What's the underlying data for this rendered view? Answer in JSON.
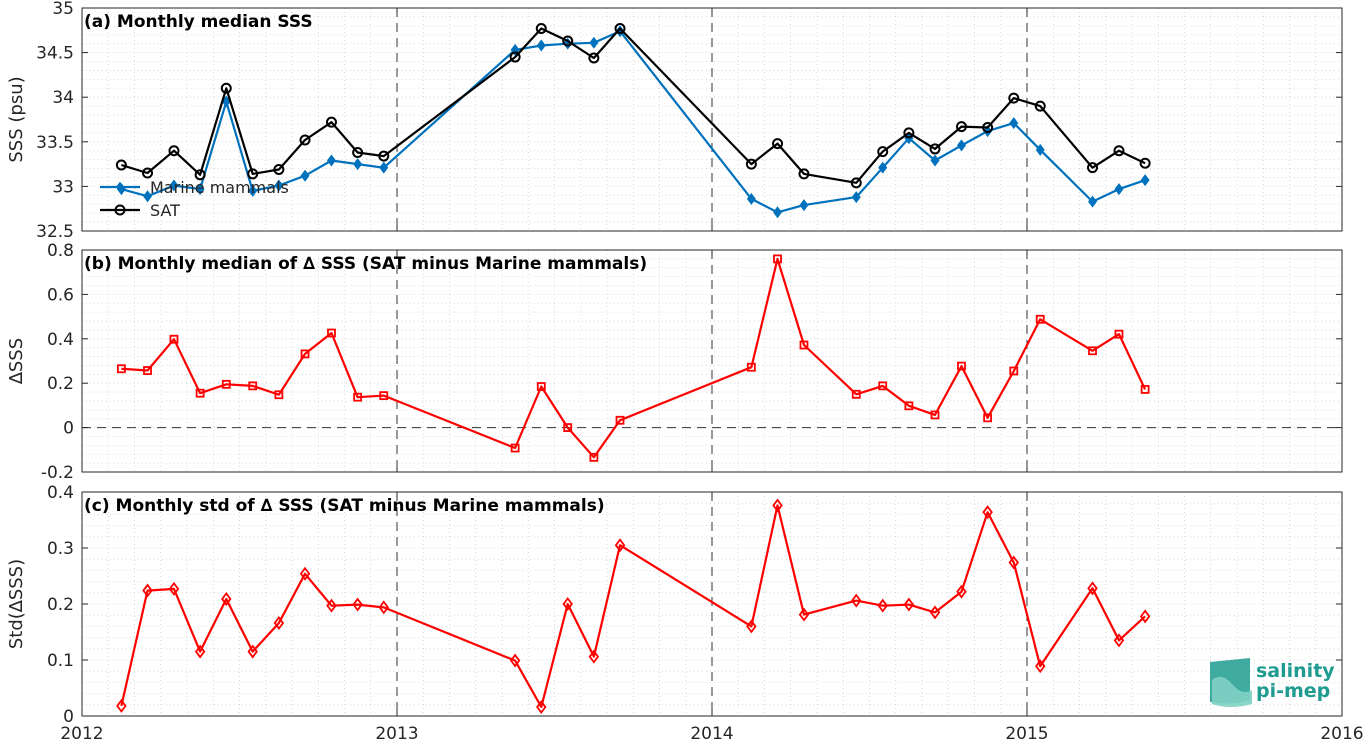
{
  "chart_data": [
    {
      "type": "line",
      "title": "(a) Monthly median SSS",
      "ylabel": "SSS (psu)",
      "xlim": [
        2012,
        2016
      ],
      "ylim": [
        32.5,
        35
      ],
      "yticks": [
        32.5,
        33,
        33.5,
        34,
        34.5,
        35
      ],
      "ytick_labels": [
        "32.5",
        "33",
        "33.5",
        "34",
        "34.5",
        "35"
      ],
      "grid": true,
      "legend": "lower-left",
      "dashed_x_lines": [
        2013,
        2014,
        2015
      ],
      "series": [
        {
          "name": "Marine mammals",
          "color": "#0072BD",
          "marker": "diamond",
          "x": [
            2012.125,
            2012.208,
            2012.292,
            2012.375,
            2012.458,
            2012.542,
            2012.625,
            2012.708,
            2012.792,
            2012.875,
            2012.958,
            2013.375,
            2013.458,
            2013.542,
            2013.625,
            2013.708,
            2014.125,
            2014.208,
            2014.292,
            2014.458,
            2014.542,
            2014.625,
            2014.708,
            2014.792,
            2014.875,
            2014.958,
            2015.042,
            2015.208,
            2015.292,
            2015.375
          ],
          "y": [
            32.97,
            32.89,
            33.01,
            32.97,
            33.95,
            32.95,
            33.01,
            33.12,
            33.29,
            33.25,
            33.21,
            34.53,
            34.58,
            34.6,
            34.61,
            34.74,
            32.86,
            32.71,
            32.79,
            32.88,
            33.21,
            33.54,
            33.29,
            33.46,
            33.62,
            33.71,
            33.41,
            32.83,
            32.97,
            33.07
          ]
        },
        {
          "name": "SAT",
          "color": "#000000",
          "marker": "circle",
          "x": [
            2012.125,
            2012.208,
            2012.292,
            2012.375,
            2012.458,
            2012.542,
            2012.625,
            2012.708,
            2012.792,
            2012.875,
            2012.958,
            2013.375,
            2013.458,
            2013.542,
            2013.625,
            2013.708,
            2014.125,
            2014.208,
            2014.292,
            2014.458,
            2014.542,
            2014.625,
            2014.708,
            2014.792,
            2014.875,
            2014.958,
            2015.042,
            2015.208,
            2015.292,
            2015.375
          ],
          "y": [
            33.24,
            33.15,
            33.4,
            33.13,
            34.1,
            33.14,
            33.19,
            33.52,
            33.72,
            33.38,
            33.34,
            34.45,
            34.77,
            34.63,
            34.44,
            34.77,
            33.25,
            33.48,
            33.14,
            33.04,
            33.39,
            33.6,
            33.42,
            33.67,
            33.66,
            33.99,
            33.9,
            33.21,
            33.4,
            33.26
          ]
        }
      ]
    },
    {
      "type": "line",
      "title": "(b) Monthly median of ∆ SSS (SAT minus Marine mammals)",
      "ylabel": "∆SSS",
      "xlim": [
        2012,
        2016
      ],
      "ylim": [
        -0.2,
        0.8
      ],
      "yticks": [
        -0.2,
        0,
        0.2,
        0.4,
        0.6,
        0.8
      ],
      "ytick_labels": [
        "-0.2",
        "0",
        "0.2",
        "0.4",
        "0.6",
        "0.8"
      ],
      "grid": true,
      "dashed_x_lines": [
        2013,
        2014,
        2015
      ],
      "dashed_y_line": 0,
      "series": [
        {
          "color": "#FF0000",
          "marker": "square",
          "x": [
            2012.125,
            2012.208,
            2012.292,
            2012.375,
            2012.458,
            2012.542,
            2012.625,
            2012.708,
            2012.792,
            2012.875,
            2012.958,
            2013.375,
            2013.458,
            2013.542,
            2013.625,
            2013.708,
            2014.125,
            2014.208,
            2014.292,
            2014.458,
            2014.542,
            2014.625,
            2014.708,
            2014.792,
            2014.875,
            2014.958,
            2015.042,
            2015.208,
            2015.292,
            2015.375
          ],
          "y": [
            0.265,
            0.257,
            0.398,
            0.155,
            0.195,
            0.188,
            0.148,
            0.332,
            0.426,
            0.137,
            0.144,
            -0.092,
            0.185,
            0.0,
            -0.134,
            0.033,
            0.272,
            0.76,
            0.372,
            0.15,
            0.188,
            0.098,
            0.057,
            0.277,
            0.044,
            0.255,
            0.488,
            0.346,
            0.421,
            0.172
          ]
        }
      ]
    },
    {
      "type": "line",
      "title": "(c) Monthly std of ∆ SSS (SAT minus Marine mammals)",
      "ylabel": "Std(∆SSS)",
      "xlim": [
        2012,
        2016
      ],
      "ylim": [
        0,
        0.4
      ],
      "yticks": [
        0,
        0.1,
        0.2,
        0.3,
        0.4
      ],
      "ytick_labels": [
        "0",
        "0.1",
        "0.2",
        "0.3",
        "0.4"
      ],
      "xticks": [
        2012,
        2013,
        2014,
        2015,
        2016
      ],
      "xtick_labels": [
        "2012",
        "2013",
        "2014",
        "2015",
        "2016"
      ],
      "grid": true,
      "dashed_x_lines": [
        2013,
        2014,
        2015
      ],
      "series": [
        {
          "color": "#FF0000",
          "marker": "diamond",
          "x": [
            2012.125,
            2012.208,
            2012.292,
            2012.375,
            2012.458,
            2012.542,
            2012.625,
            2012.708,
            2012.792,
            2012.875,
            2012.958,
            2013.375,
            2013.458,
            2013.542,
            2013.625,
            2013.708,
            2014.125,
            2014.208,
            2014.292,
            2014.458,
            2014.542,
            2014.625,
            2014.708,
            2014.792,
            2014.875,
            2014.958,
            2015.042,
            2015.208,
            2015.292,
            2015.375
          ],
          "y": [
            0.018,
            0.224,
            0.227,
            0.115,
            0.209,
            0.115,
            0.166,
            0.254,
            0.197,
            0.199,
            0.194,
            0.099,
            0.016,
            0.2,
            0.106,
            0.305,
            0.16,
            0.376,
            0.181,
            0.206,
            0.197,
            0.199,
            0.185,
            0.222,
            0.364,
            0.274,
            0.089,
            0.228,
            0.135,
            0.178
          ]
        }
      ]
    }
  ],
  "logo": {
    "line1": "salinity",
    "line2": "pi-mep",
    "color": "#1f9c8f"
  }
}
